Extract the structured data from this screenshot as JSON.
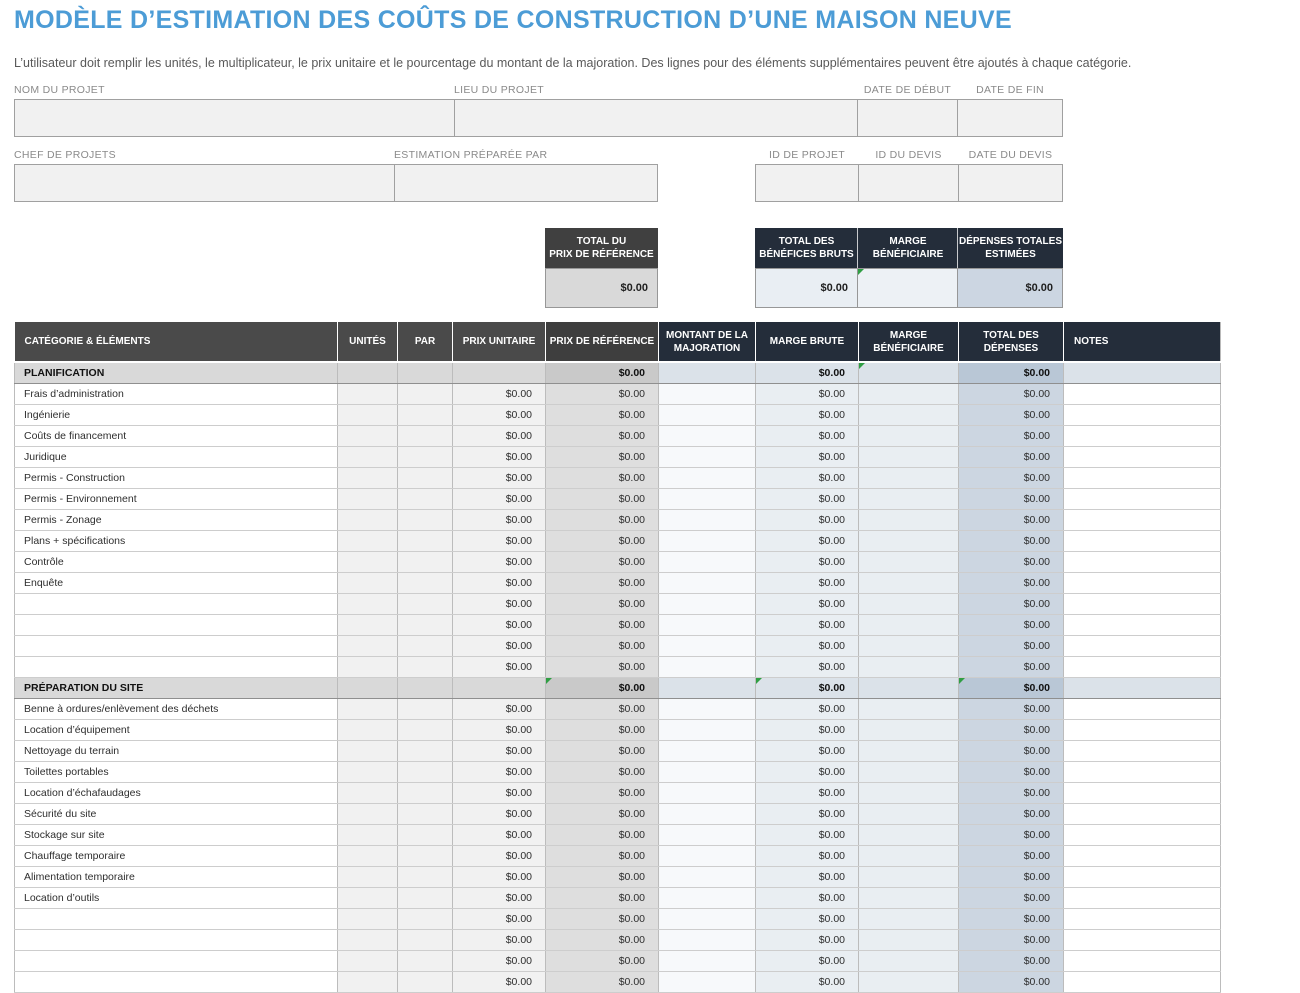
{
  "page": {
    "title": "MODÈLE D’ESTIMATION DES COÛTS DE CONSTRUCTION D’UNE MAISON NEUVE",
    "subtitle": "L’utilisateur doit remplir les unités, le multiplicateur, le prix unitaire et le pourcentage du montant de la majoration.  Des lignes pour des éléments supplémentaires peuvent être ajoutés à chaque catégorie."
  },
  "colors": {
    "accent_blue": "#4c9cd6",
    "header_gray": "#4a4a4a",
    "header_dark_gray": "#3e3e3e",
    "header_navy": "#242d3a",
    "flag_green": "#2f9e43"
  },
  "form": {
    "fields": [
      {
        "key": "nom-du-projet",
        "label": "NOM DU PROJET",
        "value": ""
      },
      {
        "key": "lieu-du-projet",
        "label": "LIEU DU PROJET",
        "value": ""
      },
      {
        "key": "date-de-debut",
        "label": "DATE DE DÉBUT",
        "value": ""
      },
      {
        "key": "date-de-fin",
        "label": "DATE DE FIN",
        "value": ""
      },
      {
        "key": "chef-de-projets",
        "label": "CHEF DE PROJETS",
        "value": ""
      },
      {
        "key": "estimation-preparee-par",
        "label": "ESTIMATION PRÉPARÉE PAR",
        "value": ""
      },
      {
        "key": "id-de-projet",
        "label": "ID DE PROJET",
        "value": ""
      },
      {
        "key": "id-du-devis",
        "label": "ID DU DEVIS",
        "value": ""
      },
      {
        "key": "date-du-devis",
        "label": "DATE DU DEVIS",
        "value": ""
      }
    ]
  },
  "summary": {
    "boxes": [
      {
        "label": "TOTAL DU\nPRIX DE RÉFÉRENCE",
        "value": "$0.00"
      },
      {
        "label": "TOTAL DES\nBÉNÉFICES BRUTS",
        "value": "$0.00"
      },
      {
        "label": "MARGE\nBÉNÉFICIAIRE",
        "value": ""
      },
      {
        "label": "DÉPENSES TOTALES\nESTIMÉES",
        "value": "$0.00"
      }
    ]
  },
  "table": {
    "zero_value": "$0.00",
    "columns": [
      {
        "key": "categorie",
        "label": "CATÉGORIE & ÉLÉMENTS"
      },
      {
        "key": "unites",
        "label": "UNITÉS"
      },
      {
        "key": "par",
        "label": "PAR"
      },
      {
        "key": "prix-unitaire",
        "label": "PRIX UNITAIRE"
      },
      {
        "key": "prix-de-reference",
        "label": "PRIX DE RÉFÉRENCE"
      },
      {
        "key": "montant-majoration",
        "label": "MONTANT DE LA MAJORATION"
      },
      {
        "key": "marge-brute",
        "label": "MARGE BRUTE"
      },
      {
        "key": "marge-beneficiaire",
        "label": "MARGE BÉNÉFICIAIRE"
      },
      {
        "key": "total-depenses",
        "label": "TOTAL DES DÉPENSES"
      },
      {
        "key": "notes",
        "label": "NOTES"
      }
    ],
    "sections": [
      {
        "name": "PLANIFICATION",
        "totals": {
          "prix_reference": "$0.00",
          "marge_brute": "$0.00",
          "total_depenses": "$0.00"
        },
        "flags": [
          "marge_beneficiaire"
        ],
        "items": [
          "Frais d’administration",
          "Ingénierie",
          "Coûts de financement",
          "Juridique",
          "Permis - Construction",
          "Permis - Environnement",
          "Permis - Zonage",
          "Plans + spécifications",
          "Contrôle",
          "Enquête",
          "",
          "",
          "",
          ""
        ]
      },
      {
        "name": "PRÉPARATION DU SITE",
        "totals": {
          "prix_reference": "$0.00",
          "marge_brute": "$0.00",
          "total_depenses": "$0.00"
        },
        "flags": [
          "prix_reference",
          "marge_brute",
          "total_depenses"
        ],
        "items": [
          "Benne à ordures/enlèvement des déchets",
          "Location d’équipement",
          "Nettoyage du terrain",
          "Toilettes portables",
          "Location d’échafaudages",
          "Sécurité du site",
          "Stockage sur site",
          "Chauffage temporaire",
          "Alimentation temporaire",
          "Location d’outils",
          "",
          "",
          "",
          ""
        ]
      }
    ]
  }
}
